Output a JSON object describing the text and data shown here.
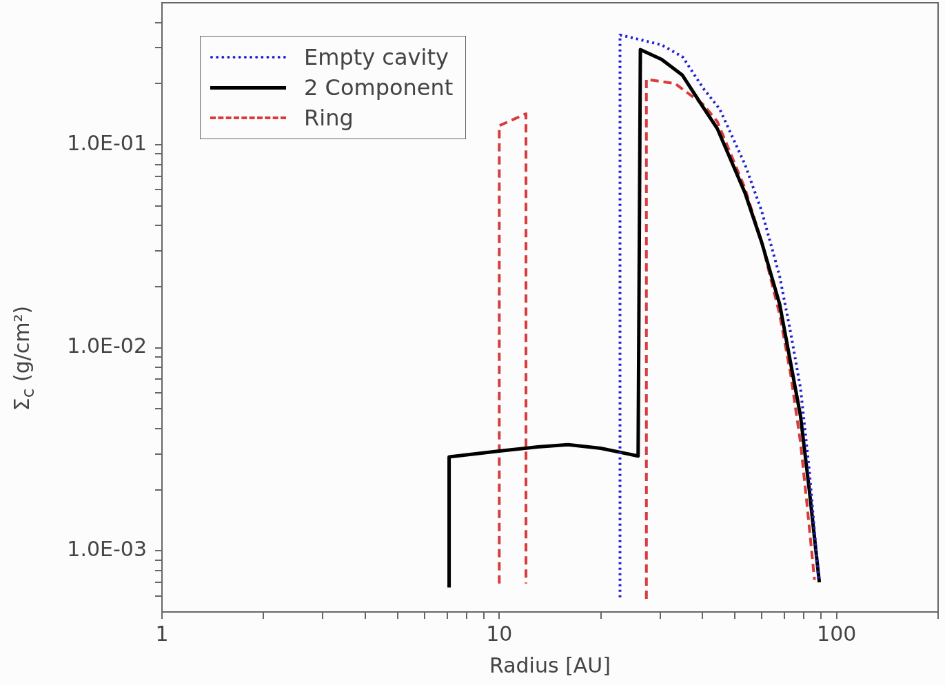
{
  "chart_data": {
    "type": "line",
    "xlabel": "Radius [AU]",
    "ylabel": "Σ$_{c}$ (g/cm²)",
    "log": "xy",
    "grid": false,
    "legend": "top left",
    "xlim": [
      1,
      200
    ],
    "ylim": [
      0.0005,
      0.5
    ],
    "xticks": [
      1,
      {
        "value": 2,
        "label": null
      },
      {
        "value": 3,
        "label": null
      },
      {
        "value": 4,
        "label": null
      },
      {
        "value": 5,
        "label": null
      },
      {
        "value": 6,
        "label": null
      },
      {
        "value": 7,
        "label": null
      },
      {
        "value": 8,
        "label": null
      },
      {
        "value": 9,
        "label": null
      },
      10,
      {
        "value": 20,
        "label": null
      },
      {
        "value": 30,
        "label": null
      },
      {
        "value": 40,
        "label": null
      },
      {
        "value": 50,
        "label": null
      },
      {
        "value": 60,
        "label": null
      },
      {
        "value": 70,
        "label": null
      },
      {
        "value": 80,
        "label": null
      },
      {
        "value": 90,
        "label": null
      },
      100,
      {
        "value": 200,
        "label": null
      }
    ],
    "yticks": [
      {
        "value": 0.0006,
        "label": null
      },
      {
        "value": 0.0007,
        "label": null
      },
      {
        "value": 0.0008,
        "label": null
      },
      {
        "value": 0.0009,
        "label": null
      },
      {
        "value": 0.001,
        "label": "1.0E-03"
      },
      {
        "value": 0.002,
        "label": null
      },
      {
        "value": 0.003,
        "label": null
      },
      {
        "value": 0.004,
        "label": null
      },
      {
        "value": 0.005,
        "label": null
      },
      {
        "value": 0.006,
        "label": null
      },
      {
        "value": 0.007,
        "label": null
      },
      {
        "value": 0.008,
        "label": null
      },
      {
        "value": 0.009,
        "label": null
      },
      {
        "value": 0.01,
        "label": "1.0E-02"
      },
      {
        "value": 0.02,
        "label": null
      },
      {
        "value": 0.03,
        "label": null
      },
      {
        "value": 0.04,
        "label": null
      },
      {
        "value": 0.05,
        "label": null
      },
      {
        "value": 0.06,
        "label": null
      },
      {
        "value": 0.07,
        "label": null
      },
      {
        "value": 0.08,
        "label": null
      },
      {
        "value": 0.09,
        "label": null
      },
      {
        "value": 0.1,
        "label": "1.0E-01"
      },
      {
        "value": 0.2,
        "label": null
      },
      {
        "value": 0.3,
        "label": null
      },
      {
        "value": 0.4,
        "label": null
      }
    ],
    "series": [
      {
        "name": "Empty cavity",
        "color": "#2020d0",
        "line_style": "dotted",
        "x": [
          22.8,
          22.8,
          25,
          30.3,
          35,
          40.2,
          45,
          53.5,
          60,
          67.8,
          73,
          78.2,
          83,
          88.5
        ],
        "values": [
          0.00059,
          0.347,
          0.335,
          0.31,
          0.27,
          0.19,
          0.15,
          0.08,
          0.047,
          0.0225,
          0.012,
          0.0063,
          0.0025,
          0.00072
        ]
      },
      {
        "name": "2 Component",
        "color": "#000000",
        "line_style": "solid",
        "x": [
          7.1,
          7.1,
          10,
          13,
          16,
          20,
          23,
          25.8,
          26.2,
          30.3,
          34.9,
          40,
          44.3,
          53.5,
          60,
          67.8,
          73,
          78.2,
          83,
          88.9
        ],
        "values": [
          0.00066,
          0.0029,
          0.0031,
          0.00325,
          0.00333,
          0.0032,
          0.00305,
          0.00293,
          0.294,
          0.263,
          0.22,
          0.155,
          0.12,
          0.058,
          0.033,
          0.0164,
          0.0085,
          0.0046,
          0.002,
          0.0007
        ]
      },
      {
        "name": "Ring",
        "color": "#d83c3c",
        "line_style": "dashed",
        "x": [
          10,
          10,
          12,
          12,
          20,
          27.3,
          27.3,
          33.2,
          40.2,
          44.3,
          53.5,
          60,
          67.8,
          73,
          78.2,
          82,
          86
        ],
        "values": [
          0.00069,
          0.124,
          0.142,
          0.00069,
          null,
          0.00058,
          0.21,
          0.2,
          0.158,
          0.13,
          0.061,
          0.033,
          0.0146,
          0.0075,
          0.0034,
          0.0016,
          0.00072
        ]
      }
    ]
  }
}
